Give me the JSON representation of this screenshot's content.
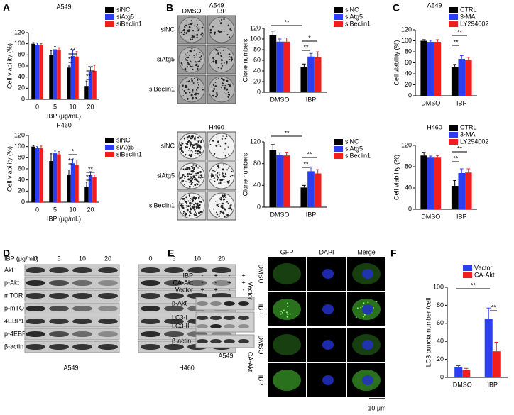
{
  "panel_labels": [
    "A",
    "B",
    "C",
    "D",
    "E",
    "F"
  ],
  "chart_data": [
    {
      "type": "bar",
      "title": "A549",
      "ylabel": "Cell viability (%)",
      "xlabel": "IBP (μg/mL)",
      "categories": [
        "0",
        "5",
        "10",
        "20"
      ],
      "series": [
        {
          "name": "siNC",
          "color": "#000000",
          "values": [
            100,
            80,
            57,
            24
          ],
          "errors": [
            2,
            8,
            5,
            9
          ]
        },
        {
          "name": "siAtg5",
          "color": "#2b3ff0",
          "values": [
            98,
            90,
            78,
            50
          ],
          "errors": [
            3,
            5,
            10,
            8
          ]
        },
        {
          "name": "siBeclin1",
          "color": "#f01e1e",
          "values": [
            97,
            89,
            77,
            51
          ],
          "errors": [
            3,
            4,
            9,
            10
          ]
        }
      ],
      "ylim": [
        0,
        120
      ],
      "yticks": [
        0,
        20,
        40,
        60,
        80,
        100,
        120
      ],
      "annotations": [
        "**",
        "**",
        "**",
        "**"
      ]
    },
    {
      "type": "bar",
      "title": "H460",
      "ylabel": "Cell viability (%)",
      "xlabel": "IBP (μg/mL)",
      "categories": [
        "0",
        "5",
        "10",
        "20"
      ],
      "series": [
        {
          "name": "siNC",
          "color": "#000000",
          "values": [
            100,
            74,
            50,
            28
          ],
          "errors": [
            2,
            13,
            8,
            8
          ]
        },
        {
          "name": "siAtg5",
          "color": "#2b3ff0",
          "values": [
            97,
            88,
            70,
            49
          ],
          "errors": [
            3,
            4,
            8,
            6
          ]
        },
        {
          "name": "siBeclin1",
          "color": "#f01e1e",
          "values": [
            97,
            86,
            67,
            45
          ],
          "errors": [
            4,
            5,
            9,
            4
          ]
        }
      ],
      "ylim": [
        0,
        120
      ],
      "yticks": [
        0,
        20,
        40,
        60,
        80,
        100,
        120
      ],
      "annotations": [
        "*",
        "**",
        "**",
        "**"
      ]
    },
    {
      "type": "bar",
      "title": "A549",
      "ylabel": "Clone numbers",
      "categories": [
        "DMSO",
        "IBP"
      ],
      "series": [
        {
          "name": "siNC",
          "color": "#000000",
          "values": [
            107,
            48
          ],
          "errors": [
            8,
            5
          ]
        },
        {
          "name": "siAtg5",
          "color": "#2b3ff0",
          "values": [
            95,
            67
          ],
          "errors": [
            5,
            6
          ]
        },
        {
          "name": "siBeclin1",
          "color": "#f01e1e",
          "values": [
            95,
            66
          ],
          "errors": [
            7,
            10
          ]
        }
      ],
      "ylim": [
        0,
        120
      ],
      "yticks": [
        0,
        20,
        40,
        60,
        80,
        100,
        120
      ],
      "annotations": [
        "**",
        "*",
        "**"
      ]
    },
    {
      "type": "bar",
      "title": "H460",
      "ylabel": "Clone numbers",
      "categories": [
        "DMSO",
        "IBP"
      ],
      "series": [
        {
          "name": "siNC",
          "color": "#000000",
          "values": [
            105,
            36
          ],
          "errors": [
            10,
            4
          ]
        },
        {
          "name": "siAtg5",
          "color": "#2b3ff0",
          "values": [
            96,
            66
          ],
          "errors": [
            4,
            8
          ]
        },
        {
          "name": "siBeclin1",
          "color": "#f01e1e",
          "values": [
            95,
            62
          ],
          "errors": [
            6,
            7
          ]
        }
      ],
      "ylim": [
        0,
        120
      ],
      "yticks": [
        0,
        40,
        80,
        120
      ],
      "annotations": [
        "**",
        "**",
        "**"
      ]
    },
    {
      "type": "bar",
      "title": "A549",
      "ylabel": "Cell viability (%)",
      "categories": [
        "DMSO",
        "IBP"
      ],
      "series": [
        {
          "name": "CTRL",
          "color": "#000000",
          "values": [
            100,
            52
          ],
          "errors": [
            2,
            5
          ]
        },
        {
          "name": "3-MA",
          "color": "#2b3ff0",
          "values": [
            98,
            67
          ],
          "errors": [
            3,
            6
          ]
        },
        {
          "name": "LY294002",
          "color": "#f01e1e",
          "values": [
            98,
            65
          ],
          "errors": [
            4,
            5
          ]
        }
      ],
      "ylim": [
        0,
        120
      ],
      "yticks": [
        0,
        20,
        40,
        60,
        80,
        100,
        120
      ],
      "annotations": [
        "**",
        "**"
      ]
    },
    {
      "type": "bar",
      "title": "H460",
      "ylabel": "Cell viability (%)",
      "categories": [
        "DMSO",
        "IBP"
      ],
      "series": [
        {
          "name": "CTRL",
          "color": "#000000",
          "values": [
            101,
            44
          ],
          "errors": [
            6,
            10
          ]
        },
        {
          "name": "3-MA",
          "color": "#2b3ff0",
          "values": [
            97,
            68
          ],
          "errors": [
            3,
            8
          ]
        },
        {
          "name": "LY294002",
          "color": "#f01e1e",
          "values": [
            97,
            69
          ],
          "errors": [
            4,
            7
          ]
        }
      ],
      "ylim": [
        0,
        120
      ],
      "yticks": [
        0,
        40,
        80,
        120
      ],
      "annotations": [
        "**",
        "**"
      ]
    },
    {
      "type": "bar",
      "ylabel": "LC3 puncta number /cell",
      "categories": [
        "DMSO",
        "IBP"
      ],
      "series": [
        {
          "name": "Vector",
          "color": "#2b3ff0",
          "values": [
            11,
            65
          ],
          "errors": [
            2,
            12
          ]
        },
        {
          "name": "CA-Akt",
          "color": "#f01e1e",
          "values": [
            8,
            29
          ],
          "errors": [
            2,
            10
          ]
        }
      ],
      "ylim": [
        0,
        100
      ],
      "yticks": [
        0,
        20,
        40,
        60,
        80,
        100
      ],
      "annotations": [
        "**",
        "**"
      ]
    }
  ],
  "colony_top": {
    "columns": [
      "DMSO",
      "IBP"
    ],
    "rows": [
      "siNC",
      "siAtg5",
      "siBeclin1"
    ]
  },
  "colony_bottom": {
    "rows": [
      "siNC",
      "siAtg5",
      "siBeclin1"
    ]
  },
  "western_d": {
    "treatment": "IBP (μg/mL)",
    "doses": [
      "0",
      "5",
      "10",
      "20",
      "0",
      "5",
      "10",
      "20"
    ],
    "rows": [
      "Akt",
      "p-Akt",
      "mTOR",
      "p-mTOR",
      "4EBP1",
      "p-4EBP1",
      "β-actin"
    ],
    "cell_lines": [
      "A549",
      "H460"
    ]
  },
  "western_e": {
    "conditions": [
      {
        "label": "IBP",
        "signs": [
          "-",
          "+",
          "-",
          "+"
        ]
      },
      {
        "label": "CA-Akt",
        "signs": [
          "-",
          "-",
          "+",
          "+"
        ]
      },
      {
        "label": "Vector",
        "signs": [
          "+",
          "+",
          "-",
          "-"
        ]
      }
    ],
    "rows": [
      "p-Akt",
      "LC3-I",
      "LC3-II",
      "β-actin"
    ],
    "cell_line": "A549"
  },
  "microscopy_f": {
    "channels": [
      "GFP",
      "DAPI",
      "Merge"
    ],
    "groups": [
      {
        "label": "Vector",
        "rows": [
          "DMSO",
          "IBP"
        ]
      },
      {
        "label": "CA-Akt",
        "rows": [
          "DMSO",
          "IBP"
        ]
      }
    ],
    "scale_bar": "10 μm"
  }
}
